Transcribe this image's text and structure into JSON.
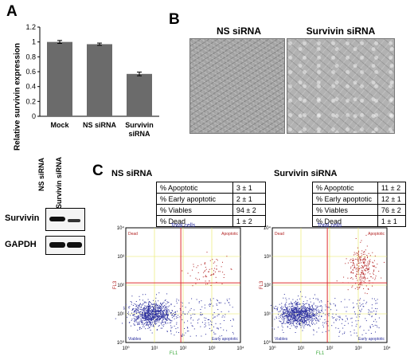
{
  "panel_labels": {
    "a": "A",
    "b": "B",
    "c": "C"
  },
  "colors": {
    "bar": "#6b6b6b",
    "flow_blue": "#2b2f9e",
    "flow_red": "#b22222",
    "gate_red": "#e03030",
    "gate_yellow": "#e8e85a",
    "flow_axis_green": "#38a838"
  },
  "chart_data": {
    "type": "bar",
    "categories": [
      "Mock",
      "NS siRNA",
      "Survivin siRNA"
    ],
    "category_lines": [
      [
        "Mock"
      ],
      [
        "NS siRNA"
      ],
      [
        "Survivin",
        "siRNA"
      ]
    ],
    "values": [
      1.0,
      0.97,
      0.57
    ],
    "errors": [
      0.02,
      0.015,
      0.025
    ],
    "ylabel": "Relative survivin expression",
    "ylim": [
      0,
      1.2
    ],
    "yticks": [
      "0",
      "0.2",
      "0.4",
      "0.6",
      "0.8",
      "1",
      "1.2"
    ]
  },
  "micrographs": {
    "ns_title": "NS siRNA",
    "surv_title": "Survivin siRNA"
  },
  "western": {
    "lane_labels": [
      "NS siRNA",
      "Survivin siRNA"
    ],
    "row_labels": [
      "Survivin",
      "GAPDH"
    ]
  },
  "flow": {
    "plots": [
      {
        "title": "NS siRNA",
        "rows": [
          {
            "label": "% Apoptotic",
            "value": "3 ± 1"
          },
          {
            "label": "% Early apoptotic",
            "value": "2 ± 1"
          },
          {
            "label": "% Viables",
            "value": "94 ± 2"
          },
          {
            "label": "% Dead",
            "value": "1 ± 2"
          }
        ]
      },
      {
        "title": "Survivin siRNA",
        "rows": [
          {
            "label": "% Apoptotic",
            "value": "11 ± 2"
          },
          {
            "label": "% Early apoptotic",
            "value": "12 ± 1"
          },
          {
            "label": "% Viables",
            "value": "76 ± 2"
          },
          {
            "label": "% Dead",
            "value": "1 ± 1"
          }
        ]
      }
    ],
    "plot_title": "Total cells",
    "quadrant_labels": {
      "dead": "Dead",
      "apoptotic": "Apoptotic",
      "viables": "Viables",
      "early": "Early  apoptotic"
    },
    "x_axis_label": "FL1",
    "y_axis_label": "FL3",
    "axis_ticks": [
      "10⁰",
      "10¹",
      "10²",
      "10³",
      "10⁴"
    ]
  }
}
